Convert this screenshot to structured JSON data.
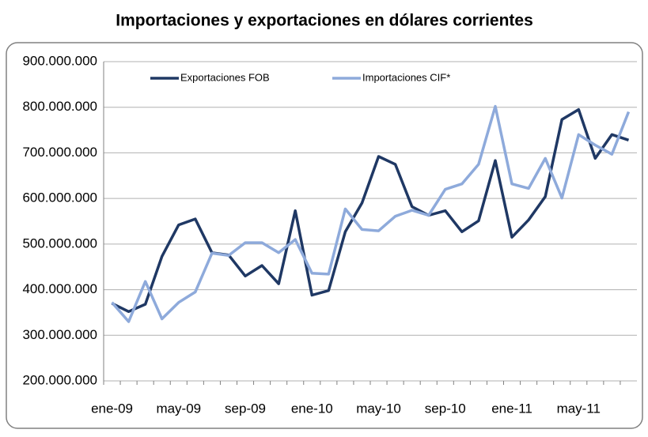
{
  "chart_data": {
    "type": "line",
    "title": "Importaciones y exportaciones en dólares corrientes",
    "categories": [
      "ene-09",
      null,
      null,
      null,
      "may-09",
      null,
      null,
      null,
      "sep-09",
      null,
      null,
      null,
      "ene-10",
      null,
      null,
      null,
      "may-10",
      null,
      null,
      null,
      "sep-10",
      null,
      null,
      null,
      "ene-11",
      null,
      null,
      null,
      "may-11",
      null,
      null,
      null
    ],
    "series": [
      {
        "name": "Exportaciones FOB",
        "color": "#1f3864",
        "values": [
          370000000,
          352000000,
          368000000,
          473000000,
          542000000,
          555000000,
          481000000,
          476000000,
          430000000,
          453000000,
          413000000,
          573000000,
          388000000,
          398000000,
          527000000,
          590000000,
          692000000,
          675000000,
          582000000,
          563000000,
          573000000,
          527000000,
          551000000,
          683000000,
          515000000,
          553000000,
          604000000,
          773000000,
          795000000,
          688000000,
          740000000,
          728000000
        ]
      },
      {
        "name": "Importaciones CIF*",
        "color": "#8eaadb",
        "values": [
          372000000,
          330000000,
          418000000,
          336000000,
          372000000,
          395000000,
          480000000,
          475000000,
          503000000,
          503000000,
          481000000,
          510000000,
          436000000,
          434000000,
          577000000,
          532000000,
          529000000,
          561000000,
          574000000,
          563000000,
          620000000,
          632000000,
          675000000,
          802000000,
          632000000,
          622000000,
          688000000,
          601000000,
          740000000,
          717000000,
          697000000,
          790000000
        ]
      }
    ],
    "ylim": [
      200000000,
      900000000
    ],
    "yticks": [
      {
        "value": 200000000,
        "label": "200.000.000"
      },
      {
        "value": 300000000,
        "label": "300.000.000"
      },
      {
        "value": 400000000,
        "label": "400.000.000"
      },
      {
        "value": 500000000,
        "label": "500.000.000"
      },
      {
        "value": 600000000,
        "label": "600.000.000"
      },
      {
        "value": 700000000,
        "label": "700.000.000"
      },
      {
        "value": 800000000,
        "label": "800.000.000"
      },
      {
        "value": 900000000,
        "label": "900.000.000"
      }
    ],
    "grid": true,
    "legend": "top-left"
  }
}
